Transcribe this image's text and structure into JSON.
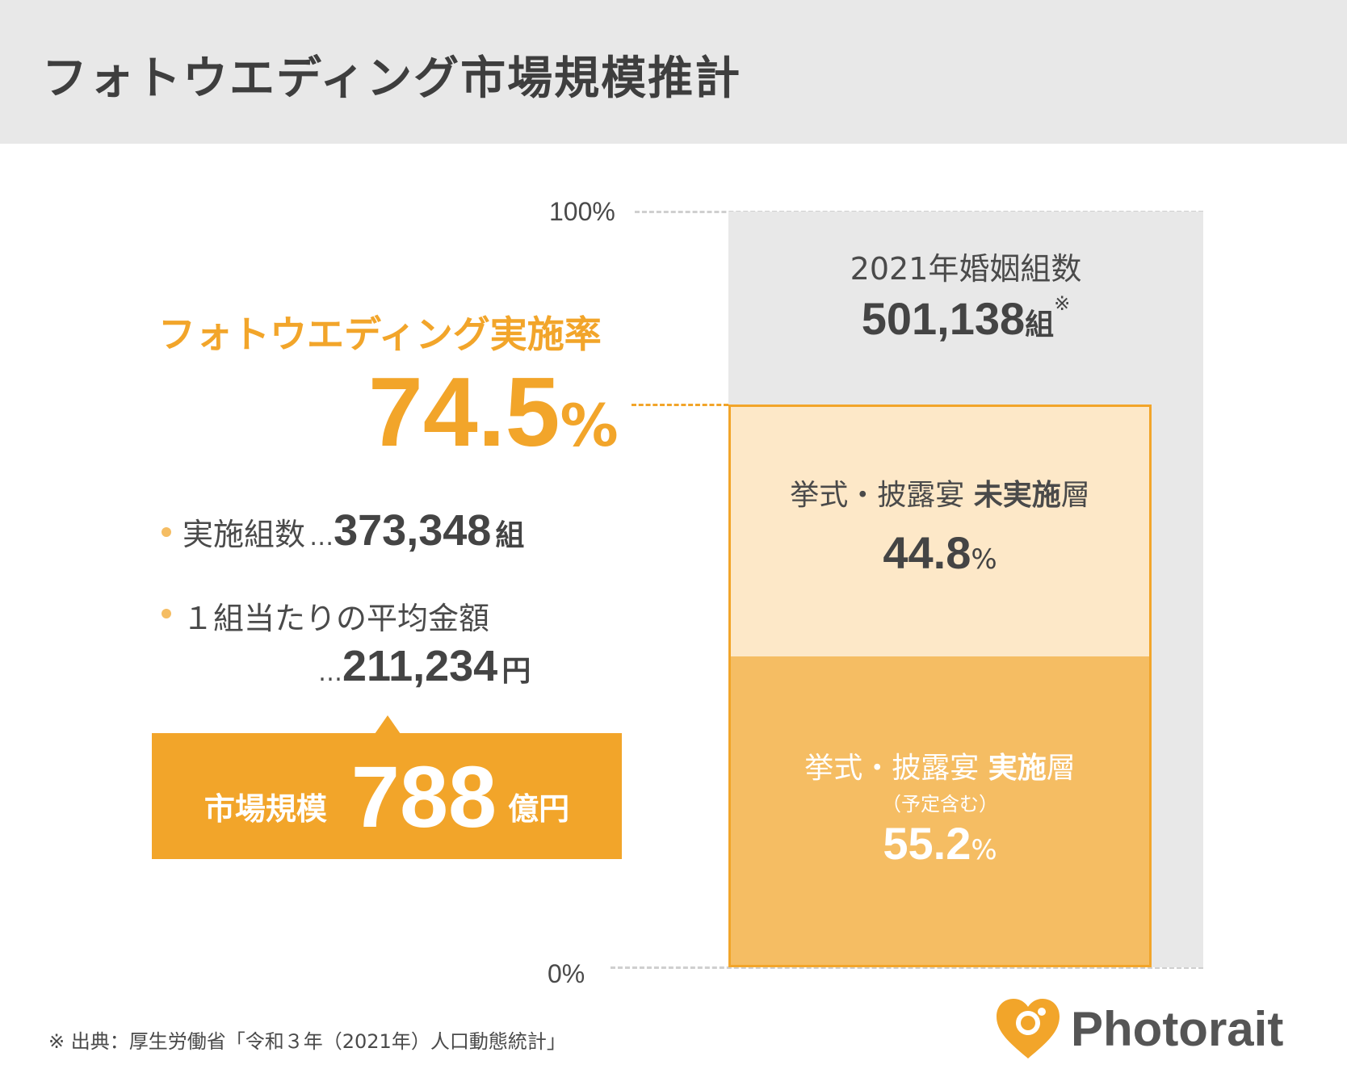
{
  "header": {
    "title": "フォトウエディング市場規模推計"
  },
  "chart_data": {
    "type": "bar",
    "stacked": true,
    "ylim": [
      0,
      100
    ],
    "y_ticks": [
      "100%",
      "0%"
    ],
    "total": {
      "caption": "2021年婚姻組数",
      "value": "501,138",
      "unit": "組",
      "mark": "※"
    },
    "series": [
      {
        "name": "挙式・披露宴 実施層",
        "sublabel": "（予定含む）",
        "value": 55.2,
        "color": "#f5bd63"
      },
      {
        "name": "挙式・披露宴 未実施層",
        "value": 44.8,
        "color": "#fde8c8"
      }
    ],
    "photo_wedding_share": 74.5
  },
  "segments": {
    "unimplemented": {
      "label_prefix": "挙式・披露宴",
      "label_bold": "未実施",
      "label_suffix": "層",
      "value": "44.8",
      "unit": "%"
    },
    "implemented": {
      "label_prefix": "挙式・披露宴",
      "label_bold": "実施",
      "label_suffix": "層",
      "sublabel": "（予定含む）",
      "value": "55.2",
      "unit": "%"
    }
  },
  "rate": {
    "title": "フォトウエディング実施率",
    "value": "74.5",
    "unit": "%"
  },
  "stats": {
    "couples": {
      "label": "実施組数",
      "dots": "…",
      "value": "373,348",
      "unit": "組"
    },
    "average": {
      "label": "１組当たりの平均金額",
      "dots": "…",
      "value": "211,234",
      "unit": "円"
    }
  },
  "market": {
    "label": "市場規模",
    "value": "788",
    "unit": "億円"
  },
  "footnote": "※ 出典：厚生労働省「令和３年（2021年）人口動態統計」",
  "brand": {
    "name": "Photorait",
    "icon": "heart-camera-icon",
    "color": "#f2a52a"
  }
}
